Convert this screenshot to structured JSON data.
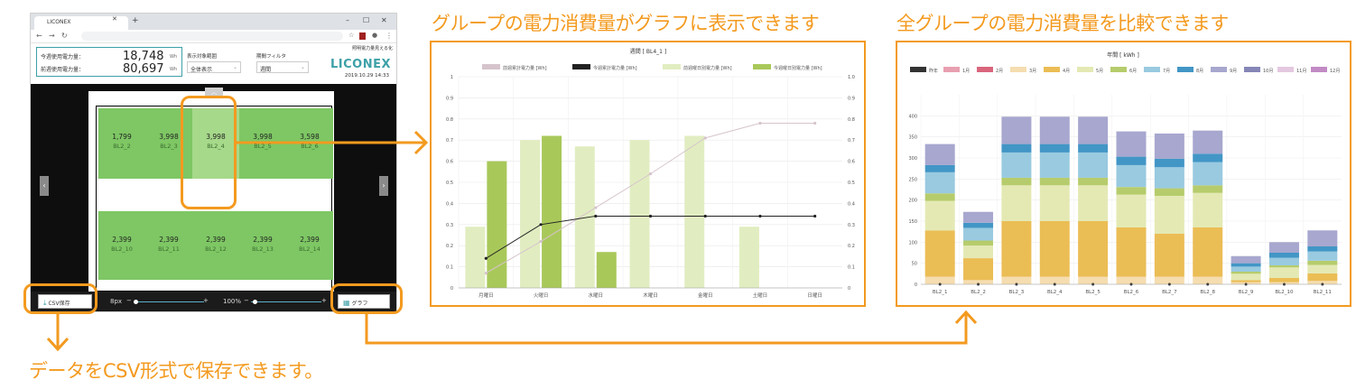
{
  "captions": {
    "left_chart": "グループの電力消費量がグラフに表示できます",
    "right_chart": "全グループの電力消費量を比較できます",
    "csv": "データをCSV形式で保存できます。"
  },
  "browser": {
    "tab_title": "LICONEX",
    "header": {
      "week_label": "今週使用電力量：",
      "week_value": "18,748",
      "prev_label": "前週使用電力量：",
      "prev_value": "80,697",
      "unit": "Wh",
      "display_target_label": "表示対象範囲",
      "display_target_value": "全体表示",
      "period_label": "期間フィルタ",
      "period_value": "週間",
      "subtitle": "照明電力量見える化",
      "logo": "LICONEX",
      "datetime": "2019.10.29 14:33"
    },
    "cells_top": [
      {
        "value": "1,799",
        "name": "BL2_2"
      },
      {
        "value": "3,998",
        "name": "BL2_3"
      },
      {
        "value": "3,998",
        "name": "BL2_4"
      },
      {
        "value": "3,998",
        "name": "BL2_5"
      },
      {
        "value": "3,598",
        "name": "BL2_6"
      }
    ],
    "cells_bottom": [
      {
        "value": "2,399",
        "name": "BL2_10"
      },
      {
        "value": "2,399",
        "name": "BL2_11"
      },
      {
        "value": "2,399",
        "name": "BL2_12"
      },
      {
        "value": "2,399",
        "name": "BL2_13"
      },
      {
        "value": "2,399",
        "name": "BL2_14"
      }
    ],
    "toolbar": {
      "csv_label": "CSV保存",
      "size_value": "8px",
      "zoom_value": "100%",
      "minus": "−",
      "plus": "+",
      "graph_label": "グラフ"
    }
  },
  "chart_data": [
    {
      "type": "bar",
      "title": "週間 [ BL4_1 ]",
      "categories": [
        "月曜日",
        "火曜日",
        "水曜日",
        "木曜日",
        "金曜日",
        "土曜日",
        "日曜日"
      ],
      "ylim": [
        0,
        1.0
      ],
      "yticks": [
        "0",
        "0.1",
        "0.2",
        "0.3",
        "0.4",
        "0.5",
        "0.6",
        "0.7",
        "0.8",
        "0.9",
        "1"
      ],
      "y2ticks": [
        "0",
        "0.1",
        "0.2",
        "0.3",
        "0.4",
        "0.5",
        "0.6",
        "0.7",
        "0.8",
        "0.9",
        "1.0"
      ],
      "legend_position": "top",
      "series": [
        {
          "name": "前週累計電力量 [Wh]",
          "kind": "line",
          "color": "#d6c4cc",
          "values": [
            0.07,
            0.22,
            0.38,
            0.54,
            0.71,
            0.78,
            0.78
          ]
        },
        {
          "name": "今週累計電力量 [Wh]",
          "kind": "line",
          "color": "#222222",
          "values": [
            0.14,
            0.3,
            0.34,
            0.34,
            0.34,
            0.34,
            0.34
          ]
        },
        {
          "name": "前週曜日別電力量 [Wh]",
          "kind": "bar",
          "color": "#e1edc1",
          "values": [
            0.29,
            0.7,
            0.67,
            0.7,
            0.72,
            0.29,
            0.0
          ]
        },
        {
          "name": "今週曜日別電力量 [Wh]",
          "kind": "bar",
          "color": "#a9c85a",
          "values": [
            0.6,
            0.72,
            0.17,
            0.0,
            0.0,
            0.0,
            0.0
          ]
        }
      ]
    },
    {
      "type": "bar",
      "title": "年間 [ kWh ]",
      "categories": [
        "BL2_1",
        "BL2_2",
        "BL2_3",
        "BL2_4",
        "BL2_5",
        "BL2_6",
        "BL2_7",
        "BL2_8",
        "BL2_9",
        "BL2_10",
        "BL2_11"
      ],
      "ylim": [
        0,
        450
      ],
      "yticks": [
        "0",
        "50",
        "100",
        "150",
        "200",
        "250",
        "300",
        "350",
        "400"
      ],
      "legend_position": "top",
      "legend": [
        {
          "name": "昨年",
          "color": "#333333"
        },
        {
          "name": "1月",
          "color": "#e8a0b0"
        },
        {
          "name": "2月",
          "color": "#d9667d"
        },
        {
          "name": "3月",
          "color": "#f5ddb0"
        },
        {
          "name": "4月",
          "color": "#ebbd55"
        },
        {
          "name": "5月",
          "color": "#e4e9b4"
        },
        {
          "name": "6月",
          "color": "#b6cc6c"
        },
        {
          "name": "7月",
          "color": "#99cae0"
        },
        {
          "name": "8月",
          "color": "#4296c6"
        },
        {
          "name": "9月",
          "color": "#a7a7cf"
        },
        {
          "name": "10月",
          "color": "#8686b7"
        },
        {
          "name": "11月",
          "color": "#e3c8e0"
        },
        {
          "name": "12月",
          "color": "#c28ac4"
        }
      ],
      "stack_colors": [
        "#f5ddb0",
        "#ebbd55",
        "#e4e9b4",
        "#b6cc6c",
        "#99cae0",
        "#4296c6",
        "#a7a7cf"
      ],
      "stacks": [
        [
          18,
          110,
          70,
          18,
          50,
          17,
          50
        ],
        [
          10,
          52,
          30,
          12,
          30,
          12,
          26
        ],
        [
          18,
          132,
          85,
          18,
          60,
          20,
          65
        ],
        [
          18,
          132,
          85,
          18,
          60,
          20,
          65
        ],
        [
          18,
          132,
          85,
          18,
          60,
          20,
          65
        ],
        [
          18,
          117,
          78,
          18,
          52,
          20,
          60
        ],
        [
          18,
          102,
          90,
          18,
          50,
          20,
          60
        ],
        [
          18,
          117,
          82,
          18,
          55,
          20,
          55
        ],
        [
          5,
          5,
          15,
          5,
          12,
          8,
          17
        ],
        [
          5,
          10,
          25,
          5,
          18,
          12,
          25
        ],
        [
          8,
          18,
          20,
          10,
          22,
          12,
          38
        ]
      ]
    }
  ]
}
